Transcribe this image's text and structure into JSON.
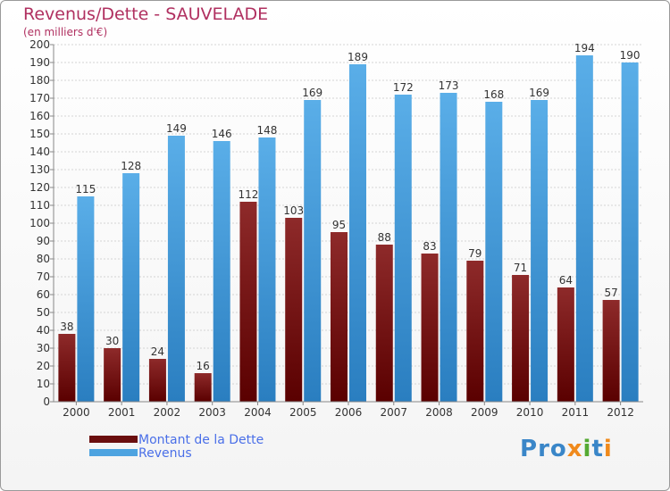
{
  "chart_data": {
    "type": "bar",
    "title": "Revenus/Dette - SAUVELADE",
    "subtitle": "(en milliers d'€)",
    "categories": [
      "2000",
      "2001",
      "2002",
      "2003",
      "2004",
      "2005",
      "2006",
      "2007",
      "2008",
      "2009",
      "2010",
      "2011",
      "2012"
    ],
    "series": [
      {
        "name": "Montant de la Dette",
        "color": "#7a1818",
        "values": [
          38,
          30,
          24,
          16,
          112,
          103,
          95,
          88,
          83,
          79,
          71,
          64,
          57
        ]
      },
      {
        "name": "Revenus",
        "color": "#4da3e0",
        "values": [
          115,
          128,
          149,
          146,
          148,
          169,
          189,
          172,
          173,
          168,
          169,
          194,
          190
        ]
      }
    ],
    "ylim": [
      0,
      200
    ],
    "ytick_step": 10,
    "grid": true,
    "legend": "bottom-left"
  },
  "logo": {
    "text": "Proxiti"
  }
}
